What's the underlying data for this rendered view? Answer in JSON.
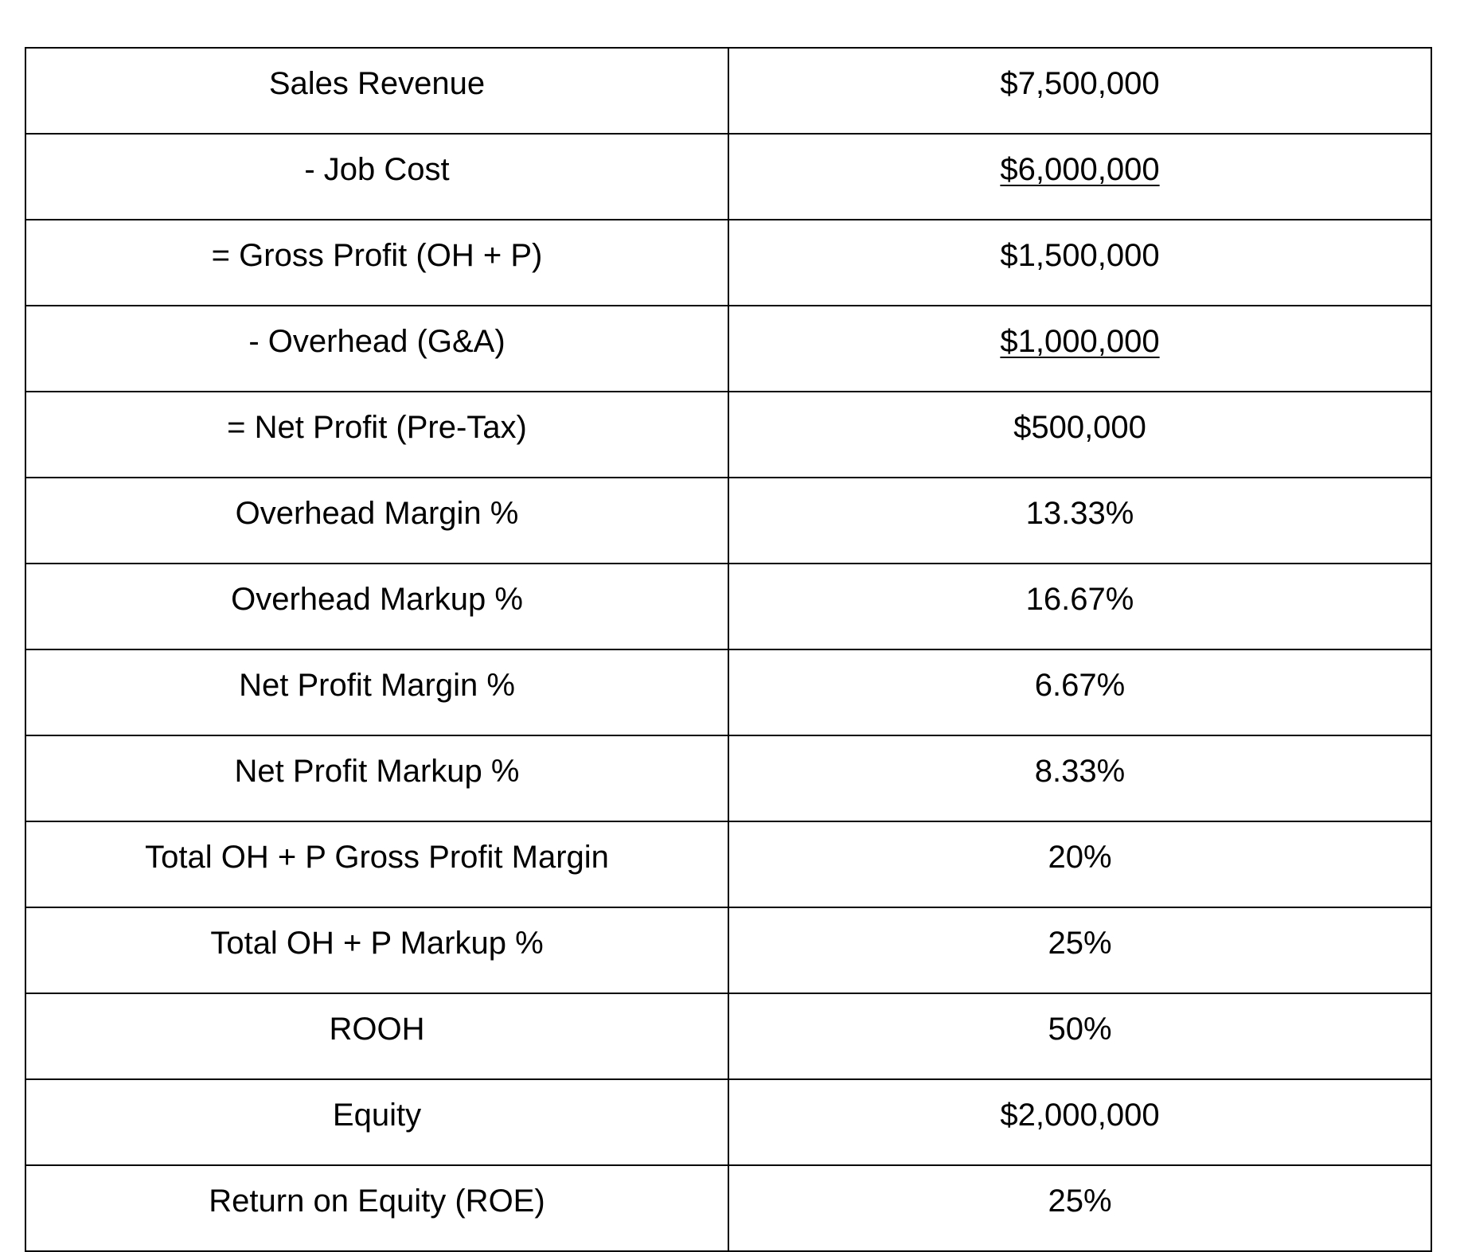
{
  "table": {
    "rows": [
      {
        "label": "Sales Revenue",
        "value": "$7,500,000",
        "underline": false
      },
      {
        "label": "- Job Cost",
        "value": "$6,000,000",
        "underline": true
      },
      {
        "label": "= Gross Profit (OH + P)",
        "value": "$1,500,000",
        "underline": false
      },
      {
        "label": "- Overhead (G&A)",
        "value": "$1,000,000",
        "underline": true
      },
      {
        "label": "= Net Profit (Pre-Tax)",
        "value": "$500,000",
        "underline": false
      },
      {
        "label": "Overhead Margin %",
        "value": "13.33%",
        "underline": false
      },
      {
        "label": "Overhead Markup %",
        "value": "16.67%",
        "underline": false
      },
      {
        "label": "Net Profit Margin %",
        "value": "6.67%",
        "underline": false
      },
      {
        "label": "Net Profit Markup %",
        "value": "8.33%",
        "underline": false
      },
      {
        "label": "Total OH + P Gross Profit Margin",
        "value": "20%",
        "underline": false
      },
      {
        "label": "Total OH + P Markup %",
        "value": "25%",
        "underline": false
      },
      {
        "label": "ROOH",
        "value": "50%",
        "underline": false
      },
      {
        "label": "Equity",
        "value": "$2,000,000",
        "underline": false
      },
      {
        "label": "Return on Equity (ROE)",
        "value": "25%",
        "underline": false
      }
    ]
  }
}
